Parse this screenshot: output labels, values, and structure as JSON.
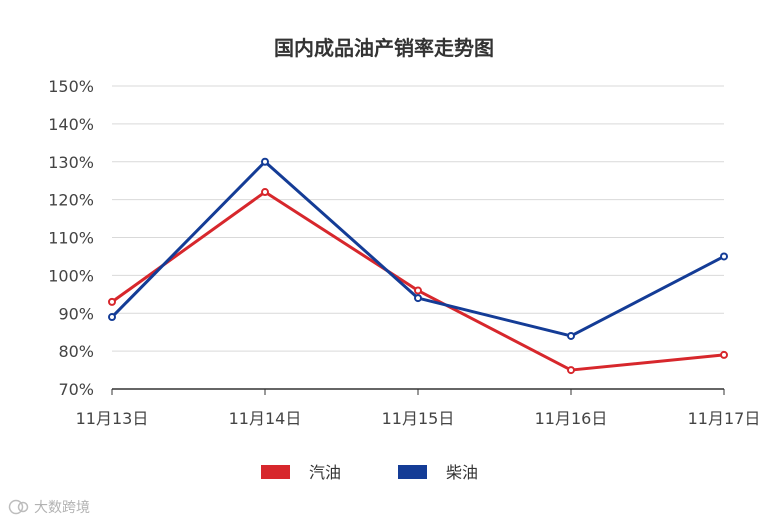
{
  "colors": {
    "gasoline": "#D7272C",
    "diesel": "#143C96",
    "grid": "#D9D9D9",
    "axis": "#333333"
  },
  "watermark": {
    "text": "大数跨境",
    "logo_text": "lG"
  },
  "chart_data": {
    "type": "line",
    "title": "国内成品油产销率走势图",
    "xlabel": "",
    "ylabel": "",
    "categories": [
      "11月13日",
      "11月14日",
      "11月15日",
      "11月16日",
      "11月17日"
    ],
    "series": [
      {
        "name": "汽油",
        "values": [
          93,
          122,
          96,
          75,
          79
        ]
      },
      {
        "name": "柴油",
        "values": [
          89,
          130,
          94,
          84,
          105
        ]
      }
    ],
    "ylim": [
      70,
      150
    ],
    "y_ticks": [
      "70%",
      "80%",
      "90%",
      "100%",
      "110%",
      "120%",
      "130%",
      "140%",
      "150%"
    ],
    "grid": true,
    "legend": "bottom-center"
  }
}
